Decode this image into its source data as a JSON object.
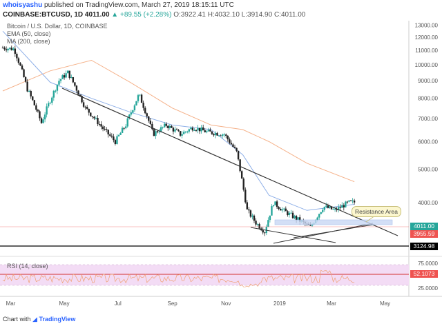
{
  "header": {
    "user": "whoisyashu",
    "published": "published on TradingView.com, March 27, 2019 18:15:11 UTC",
    "symbol": "COINBASE:BTCUSD, 1D",
    "last": "4011.00",
    "change": "▲ +89.55 (+2.28%)",
    "ohlc": "O:3922.41 H:4032.10 L:3914.90 C:4011.00"
  },
  "legend": {
    "title": "Bitcoin / U.S. Dollar, 1D, COINBASE",
    "ema": "EMA (50, close)",
    "ma": "MA (200, close)"
  },
  "rsi": {
    "label": "RSI (14, close)",
    "value": "52.1073",
    "ticks": [
      "75.0000",
      "25.0000"
    ]
  },
  "price_tags": {
    "last": "4011.00",
    "ema": "3955.59",
    "support": "3124.98"
  },
  "annotation": {
    "resistance": "Resistance Area"
  },
  "footer": {
    "prefix": "Chart with",
    "brand": "TradingView"
  },
  "colors": {
    "up": "#26a69a",
    "down": "#222222",
    "ema": "#8fb0e8",
    "ma": "#f5b189",
    "rsi": "#f0a070",
    "band": "#f3dcf5",
    "last": "#26a69a",
    "support": "#000000",
    "ema_tag": "#ef5350"
  },
  "chart_data": {
    "type": "line",
    "title": "Bitcoin / U.S. Dollar, 1D, COINBASE",
    "xlabel": "",
    "ylabel": "",
    "x_ticks": [
      "Mar",
      "May",
      "Jul",
      "Sep",
      "Nov",
      "2019",
      "Mar",
      "May"
    ],
    "y_ticks": [
      13000,
      12000,
      11000,
      10000,
      9000,
      8000,
      7000,
      6000,
      5000,
      4000
    ],
    "ylim": [
      2800,
      13400
    ],
    "grid": false,
    "series": [
      {
        "name": "Bitcoin / U.S. Dollar",
        "x": [
          "2018-02-20",
          "2018-03-05",
          "2018-03-20",
          "2018-04-05",
          "2018-04-25",
          "2018-05-05",
          "2018-05-25",
          "2018-06-15",
          "2018-06-28",
          "2018-07-10",
          "2018-07-25",
          "2018-08-10",
          "2018-08-25",
          "2018-09-10",
          "2018-09-25",
          "2018-10-10",
          "2018-10-30",
          "2018-11-13",
          "2018-11-20",
          "2018-11-25",
          "2018-12-05",
          "2018-12-15",
          "2018-12-25",
          "2019-01-05",
          "2019-01-20",
          "2019-02-05",
          "2019-02-20",
          "2019-03-05",
          "2019-03-20",
          "2019-03-27"
        ],
        "values": [
          11200,
          11100,
          8500,
          6800,
          9000,
          9500,
          7500,
          6500,
          6000,
          6700,
          8200,
          6300,
          6700,
          6300,
          6600,
          6400,
          6300,
          5600,
          4500,
          3800,
          3500,
          3300,
          4000,
          3800,
          3600,
          3400,
          3900,
          3800,
          4000,
          4011
        ]
      },
      {
        "name": "EMA (50, close)",
        "x": [
          "2018-02-20",
          "2018-04-15",
          "2018-06-01",
          "2018-07-15",
          "2018-09-01",
          "2018-10-15",
          "2018-11-20",
          "2018-12-20",
          "2019-02-01",
          "2019-03-27"
        ],
        "values": [
          12500,
          8900,
          8000,
          7300,
          6700,
          6500,
          5500,
          4200,
          3800,
          3955.59
        ]
      },
      {
        "name": "MA (200, close)",
        "x": [
          "2018-02-20",
          "2018-04-15",
          "2018-06-01",
          "2018-07-15",
          "2018-09-01",
          "2018-10-15",
          "2018-11-20",
          "2018-12-20",
          "2019-02-01",
          "2019-03-27"
        ],
        "values": [
          8400,
          9600,
          10300,
          8900,
          7500,
          6700,
          6500,
          6000,
          5200,
          4600
        ]
      }
    ]
  }
}
